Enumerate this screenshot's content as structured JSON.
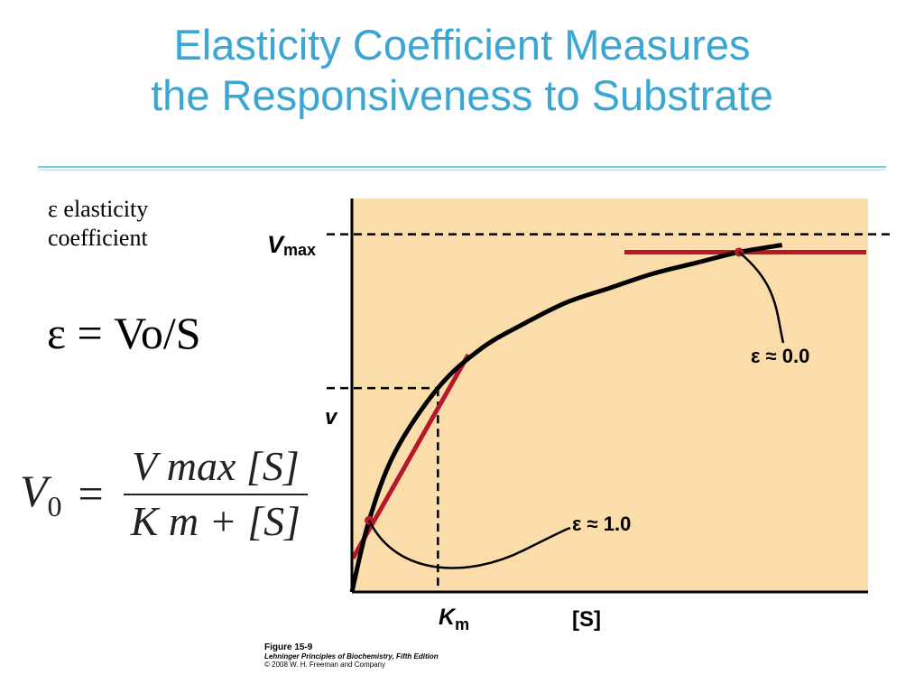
{
  "slide": {
    "title_line1": "Elasticity Coefficient Measures",
    "title_line2": "the Responsiveness to Substrate"
  },
  "legend": {
    "line1": "ε elasticity",
    "line2": "coefficient"
  },
  "formula": "ε = Vo/S",
  "mm_equation": {
    "lhs": "V",
    "lhs_sub": "0",
    "numerator": "V max [S]",
    "denominator": "K m + [S]"
  },
  "chart_data": {
    "type": "line",
    "xlabel": "[S]",
    "ylabel": "",
    "xlim": [
      0,
      6
    ],
    "ylim": [
      0,
      1.1
    ],
    "series": [
      {
        "x": [
          0,
          0.2,
          0.5,
          1,
          1.5,
          2,
          2.5,
          3,
          3.5,
          4,
          4.5,
          5
        ],
        "y": [
          0,
          0.2,
          0.39,
          0.57,
          0.68,
          0.75,
          0.81,
          0.85,
          0.89,
          0.92,
          0.95,
          0.97
        ]
      }
    ],
    "reference_lines": {
      "vmax_label": "V",
      "vmax_sub": "max",
      "vmax_value": 1.0,
      "v_label": "v",
      "v_value": 0.57,
      "km_label": "K",
      "km_sub": "m",
      "km_value": 1
    },
    "tangent_points": [
      {
        "x": 0.2,
        "y": 0.2,
        "label": "ε ≈ 1.0"
      },
      {
        "x": 4.5,
        "y": 0.95,
        "label": "ε ≈ 0.0"
      }
    ],
    "colors": {
      "plot_background": "#fbdcab",
      "curve": "#000000",
      "tangent": "#b5172b"
    }
  },
  "caption": {
    "figure": "Figure 15-9",
    "book": "Lehninger Principles of Biochemistry, Fifth Edition",
    "copyright": "© 2008 W. H. Freeman and Company"
  }
}
